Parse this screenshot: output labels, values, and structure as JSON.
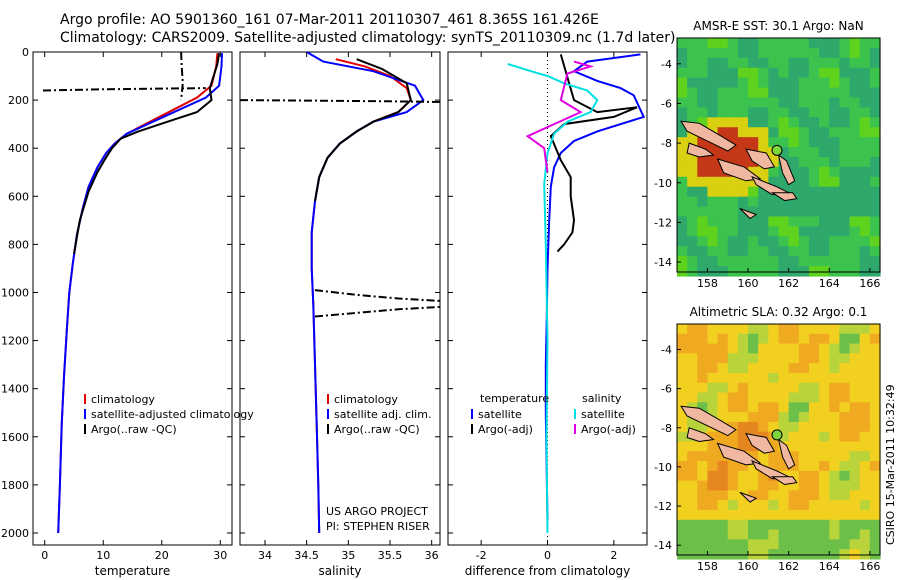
{
  "header": {
    "line1": "Argo profile: AO 5901360_161 07-Mar-2011 20110307_461 8.365S 161.426E",
    "line2": "Climatology: CARS2009. Satellite-adjusted climatology: synTS_20110309.nc (1.7d later)"
  },
  "colors": {
    "climatology": "#e00000",
    "satellite": "#0000ff",
    "argo": "#000000",
    "cyan": "#00e0e0",
    "magenta": "#e000e0"
  },
  "footer": {
    "project": "US ARGO PROJECT",
    "pi": "PI: STEPHEN RISER",
    "stamp": "CSIRO 15-Mar-2011 10:32:49"
  },
  "chart_data": [
    {
      "type": "line",
      "xlabel": "temperature",
      "xlim": [
        -2,
        32
      ],
      "ylim": [
        2050,
        0
      ],
      "xticks": [
        0,
        10,
        20,
        30
      ],
      "yticks": [
        0,
        200,
        400,
        600,
        800,
        1000,
        1200,
        1400,
        1600,
        1800,
        2000
      ],
      "legend": {
        "placement": "bottom-right",
        "entries": [
          "climatology",
          "satellite-adjusted climatology",
          "Argo(..raw -QC)"
        ]
      },
      "series": [
        {
          "name": "climatology",
          "color": "#e00000",
          "x": [
            29.5,
            29.3,
            28.5,
            26,
            22,
            18,
            14,
            12,
            10.5,
            9,
            7.5,
            6.5,
            5.5,
            4.8,
            4.2,
            3.8,
            3.3,
            2.9,
            2.6,
            2.3
          ],
          "y": [
            5,
            60,
            140,
            190,
            240,
            290,
            340,
            380,
            420,
            480,
            560,
            650,
            760,
            880,
            1000,
            1150,
            1350,
            1550,
            1800,
            2000
          ]
        },
        {
          "name": "satellite-adjusted climatology",
          "color": "#0000ff",
          "x": [
            30.3,
            30.2,
            29.8,
            27.5,
            23,
            18.5,
            14,
            12,
            10.5,
            9,
            7.5,
            6.5,
            5.5,
            4.8,
            4.2,
            3.8,
            3.3,
            2.9,
            2.6,
            2.3
          ],
          "y": [
            5,
            60,
            140,
            190,
            240,
            290,
            340,
            380,
            420,
            480,
            560,
            650,
            760,
            880,
            1000,
            1150,
            1350,
            1550,
            1800,
            2000
          ]
        },
        {
          "name": "Argo(..raw -QC)",
          "color": "#000000",
          "x": [
            29.8,
            29.5,
            28.2,
            28.5,
            26,
            21,
            16,
            13,
            11.5,
            10.2,
            9,
            7.5,
            6,
            5
          ],
          "y": [
            5,
            50,
            150,
            200,
            250,
            290,
            330,
            360,
            400,
            450,
            500,
            580,
            700,
            840
          ]
        },
        {
          "name": "",
          "color": "#000000",
          "x": [
            -0.3,
            10,
            20,
            27.5
          ],
          "y": [
            160,
            155,
            152,
            150
          ]
        },
        {
          "name": "",
          "color": "#000000",
          "x": [
            23.3,
            23.4,
            23.6,
            23.3
          ],
          "y": [
            0,
            60,
            130,
            200
          ]
        }
      ]
    },
    {
      "type": "line",
      "xlabel": "salinity",
      "xlim": [
        33.7,
        36.1
      ],
      "ylim": [
        2050,
        0
      ],
      "xticks": [
        34,
        34.5,
        35,
        35.5,
        36
      ],
      "yticks": [
        0,
        200,
        400,
        600,
        800,
        1000,
        1200,
        1400,
        1600,
        1800,
        2000
      ],
      "legend": {
        "placement": "bottom-right",
        "entries": [
          "climatology",
          "satellite adj. clim.",
          "Argo(..raw -QC)"
        ]
      },
      "series": [
        {
          "name": "climatology",
          "color": "#e00000",
          "x": [
            34.85,
            35.2,
            35.5,
            35.7,
            35.75,
            35.6,
            35.3,
            35.1,
            34.9,
            34.75,
            34.65,
            34.6,
            34.56,
            34.56,
            34.58,
            34.6,
            34.62,
            34.64,
            34.65
          ],
          "y": [
            30,
            60,
            100,
            150,
            200,
            250,
            290,
            330,
            380,
            440,
            520,
            620,
            750,
            900,
            1050,
            1300,
            1550,
            1800,
            2000
          ]
        },
        {
          "name": "satellite adj. clim.",
          "color": "#0000ff",
          "x": [
            34.5,
            34.7,
            35.3,
            35.8,
            35.9,
            35.7,
            35.3,
            35.1,
            34.9,
            34.75,
            34.65,
            34.6,
            34.56,
            34.56,
            34.58,
            34.6,
            34.62,
            34.64,
            34.65
          ],
          "y": [
            0,
            40,
            80,
            140,
            200,
            250,
            290,
            330,
            380,
            440,
            520,
            620,
            750,
            900,
            1050,
            1300,
            1550,
            1800,
            2000
          ]
        },
        {
          "name": "Argo(..raw -QC)",
          "color": "#000000",
          "x": [
            35.1,
            35.4,
            35.7,
            35.75,
            35.6,
            35.3,
            35.1,
            34.9,
            34.75,
            34.65,
            34.6
          ],
          "y": [
            30,
            70,
            130,
            200,
            250,
            290,
            330,
            380,
            440,
            520,
            620
          ]
        },
        {
          "name": "",
          "color": "#000000",
          "x": [
            33.7,
            34.5,
            35.5,
            36.1
          ],
          "y": [
            200,
            202,
            205,
            208
          ]
        },
        {
          "name": "",
          "color": "#000000",
          "x": [
            34.6,
            35.1,
            35.6,
            36.1
          ],
          "y": [
            990,
            1010,
            1025,
            1035
          ]
        },
        {
          "name": "",
          "color": "#000000",
          "x": [
            34.6,
            35.1,
            35.6,
            36.1
          ],
          "y": [
            1100,
            1085,
            1070,
            1060
          ]
        }
      ]
    },
    {
      "type": "line",
      "xlabel": "difference from climatology",
      "xlim": [
        -3,
        3
      ],
      "ylim": [
        2050,
        0
      ],
      "xticks": [
        -2,
        0,
        2
      ],
      "yticks": [
        0,
        200,
        400,
        600,
        800,
        1000,
        1200,
        1400,
        1600,
        1800,
        2000
      ],
      "legend": {
        "placement": "bottom",
        "entries": [
          "temperature",
          "satellite",
          "Argo(-adj)",
          "salinity",
          "satellite",
          "Argo(-adj)"
        ]
      },
      "series": [
        {
          "name": "satellite",
          "color": "#0000ff",
          "x": [
            2.8,
            1.2,
            0.8,
            1.5,
            2.2,
            2.6,
            2.9,
            1.5,
            0.8,
            0.4,
            0.2,
            0.1,
            0.05,
            0.0,
            -0.02,
            -0.05,
            -0.05,
            -0.03,
            0.0
          ],
          "y": [
            10,
            40,
            80,
            120,
            150,
            180,
            270,
            330,
            370,
            420,
            480,
            560,
            700,
            900,
            1100,
            1300,
            1500,
            1700,
            1950
          ]
        },
        {
          "name": "Argo(-adj)",
          "color": "#000000",
          "x": [
            0.4,
            0.8,
            1.5,
            2.7,
            2.0,
            0.5,
            0.1,
            0.4,
            0.7,
            0.7,
            0.8,
            0.75,
            0.5,
            0.3
          ],
          "y": [
            10,
            200,
            250,
            230,
            270,
            300,
            350,
            450,
            520,
            600,
            700,
            750,
            800,
            830
          ]
        },
        {
          "name": "satellite",
          "color": "#00e0e0",
          "x": [
            -1.2,
            -0.5,
            0.0,
            0.5,
            1.2,
            1.5,
            1.3,
            0.6,
            0.2,
            0.0,
            -0.1,
            -0.05,
            0.0,
            -0.03,
            0.0
          ],
          "y": [
            50,
            80,
            100,
            130,
            160,
            200,
            250,
            290,
            340,
            420,
            550,
            800,
            1200,
            1600,
            2000
          ]
        },
        {
          "name": "Argo(-adj)",
          "color": "#e000e0",
          "x": [
            0.8,
            1.3,
            0.6,
            0.4,
            1.0,
            0.2,
            -0.6,
            -0.1,
            0.0
          ],
          "y": [
            40,
            60,
            90,
            200,
            250,
            300,
            350,
            400,
            500
          ]
        }
      ]
    },
    {
      "type": "heatmap",
      "title": "AMSR-E SST: 30.1 Argo: NaN",
      "xlim": [
        156.5,
        166.5
      ],
      "ylim": [
        -14.5,
        -2.7
      ],
      "xticks": [
        158,
        160,
        162,
        164,
        166
      ],
      "yticks": [
        -4,
        -6,
        -8,
        -10,
        -12,
        -14
      ],
      "argo_position": {
        "lon": 161.426,
        "lat": -8.365
      }
    },
    {
      "type": "heatmap",
      "title": "Altimetric SLA: 0.32 Argo: 0.1",
      "xlim": [
        156.5,
        166.5
      ],
      "ylim": [
        -14.5,
        -2.7
      ],
      "xticks": [
        158,
        160,
        162,
        164,
        166
      ],
      "yticks": [
        -4,
        -6,
        -8,
        -10,
        -12,
        -14
      ],
      "argo_position": {
        "lon": 161.426,
        "lat": -8.365
      }
    }
  ]
}
